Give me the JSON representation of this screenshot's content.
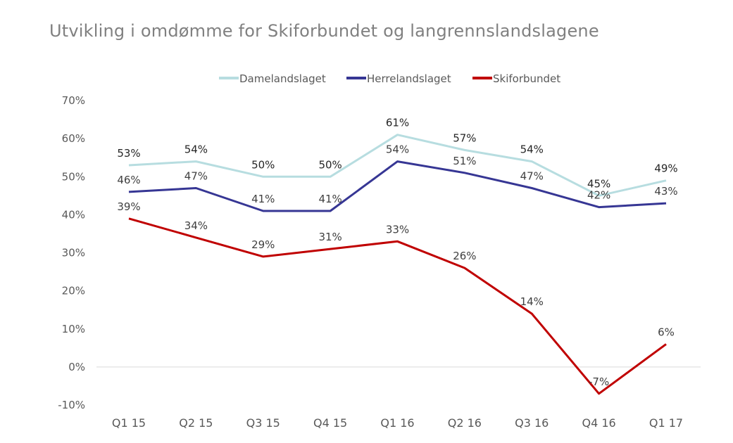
{
  "chart_data": {
    "type": "line",
    "title": "Utvikling i omdømme for Skiforbundet og langrennslandslagene",
    "xlabel": "",
    "ylabel": "",
    "categories": [
      "Q1 15",
      "Q2 15",
      "Q3 15",
      "Q4 15",
      "Q1 16",
      "Q2 16",
      "Q3 16",
      "Q4 16",
      "Q1 17"
    ],
    "ylim": [
      -10,
      70
    ],
    "yticks": [
      70,
      60,
      50,
      40,
      30,
      20,
      10,
      0,
      -10
    ],
    "ytick_labels": [
      "70%",
      "60%",
      "50%",
      "40%",
      "30%",
      "20%",
      "10%",
      "0%",
      "-10%"
    ],
    "grid": false,
    "zero_line": true,
    "legend_position": "top-center",
    "series": [
      {
        "name": "Damelandslaget",
        "color": "#B7DDE0",
        "values": [
          53,
          54,
          50,
          50,
          61,
          57,
          54,
          45,
          49
        ],
        "labels": [
          "53%",
          "54%",
          "50%",
          "50%",
          "61%",
          "57%",
          "54%",
          "45%",
          "49%"
        ]
      },
      {
        "name": "Herrelandslaget",
        "color": "#363694",
        "values": [
          46,
          47,
          41,
          41,
          54,
          51,
          47,
          42,
          43
        ],
        "labels": [
          "46%",
          "47%",
          "41%",
          "41%",
          "54%",
          "51%",
          "47%",
          "42%",
          "43%"
        ]
      },
      {
        "name": "Skiforbundet",
        "color": "#C00000",
        "values": [
          39,
          34,
          29,
          31,
          33,
          26,
          14,
          -7,
          6
        ],
        "labels": [
          "39%",
          "34%",
          "29%",
          "31%",
          "33%",
          "26%",
          "14%",
          "-7%",
          "6%"
        ]
      }
    ]
  }
}
